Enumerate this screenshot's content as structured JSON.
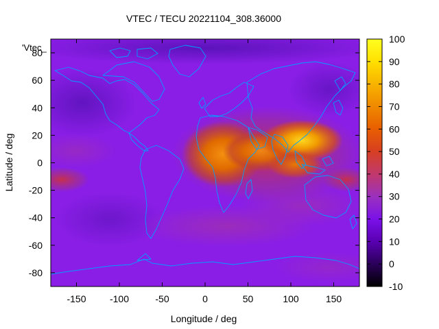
{
  "title": "VTEC / TECU 20221104_308.36000",
  "plot_key": "'Vtec_",
  "xlabel": "Longitude / deg",
  "ylabel": "Latitude / deg",
  "chart_data": {
    "type": "heatmap",
    "x_range": [
      -180,
      180
    ],
    "y_range": [
      -90,
      90
    ],
    "x_ticks": [
      -150,
      -100,
      -50,
      0,
      50,
      100,
      150
    ],
    "y_ticks": [
      -80,
      -60,
      -40,
      -20,
      0,
      20,
      40,
      60,
      80
    ],
    "colorbar_range": [
      -10,
      100
    ],
    "colorbar_ticks": [
      -10,
      0,
      10,
      20,
      30,
      40,
      50,
      60,
      70,
      80,
      90,
      100
    ],
    "colormap": [
      "#000000",
      "#3a0070",
      "#7a10d8",
      "#9a30c0",
      "#c03c70",
      "#e04a00",
      "#f07a00",
      "#ffd000",
      "#ffff00"
    ],
    "coastline_color": "#00a0ff",
    "regions": [
      {
        "lon": 30,
        "lat": 5,
        "value": 75
      },
      {
        "lon": 110,
        "lat": 15,
        "value": 85
      },
      {
        "lon": 75,
        "lat": 20,
        "value": 65
      },
      {
        "lon": -170,
        "lat": -12,
        "value": 45
      },
      {
        "lon": -150,
        "lat": -40,
        "value": 15
      },
      {
        "lon": -140,
        "lat": 50,
        "value": 8
      }
    ]
  }
}
